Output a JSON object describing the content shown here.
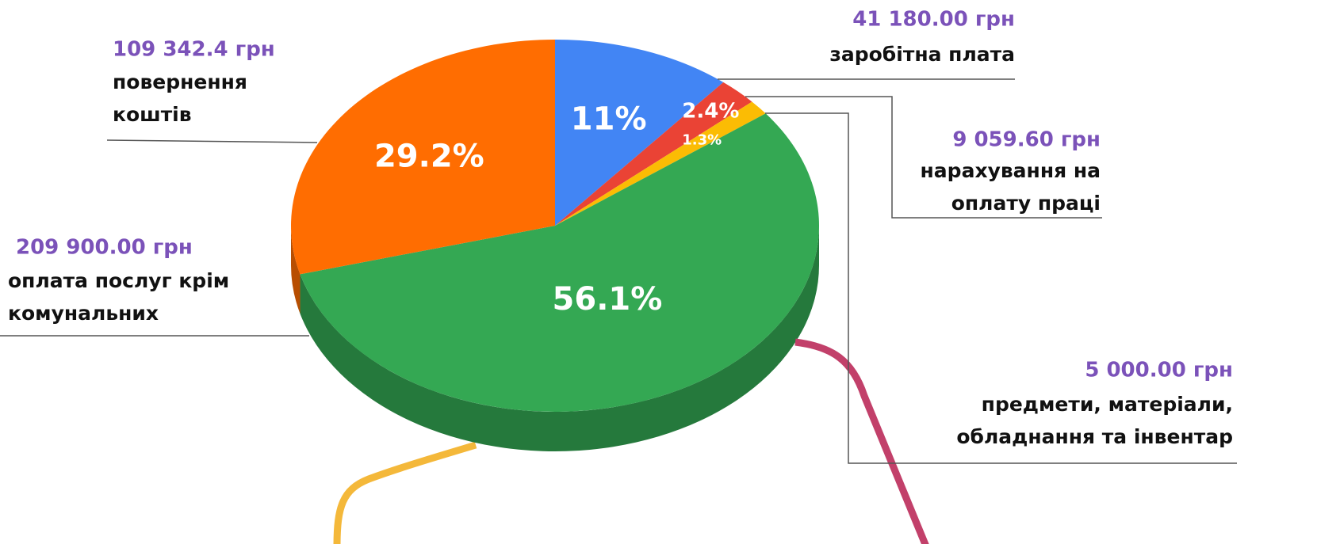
{
  "chart_data": {
    "type": "pie",
    "values": [
      11,
      2.4,
      1.3,
      56.1,
      29.2
    ],
    "value_labels": [
      "11%",
      "2.4%",
      "1.3%",
      "56.1%",
      "29.2%"
    ],
    "colors": [
      "#4285f4",
      "#ea4335",
      "#fbbc04",
      "#34a853",
      "#ff6d01"
    ],
    "amounts": [
      "41 180.00  грн",
      "9 059.60 грн",
      "5 000.00 грн",
      "209 900.00 грн",
      "109 342.4 грн"
    ],
    "labels": [
      [
        "заробітна плата"
      ],
      [
        "нарахування на",
        "оплату праці"
      ],
      [
        "предмети, матеріали,",
        "обладнання та інвентар"
      ],
      [
        "оплата послуг крім",
        "комунальних"
      ],
      [
        "повернення",
        "коштів"
      ]
    ]
  }
}
